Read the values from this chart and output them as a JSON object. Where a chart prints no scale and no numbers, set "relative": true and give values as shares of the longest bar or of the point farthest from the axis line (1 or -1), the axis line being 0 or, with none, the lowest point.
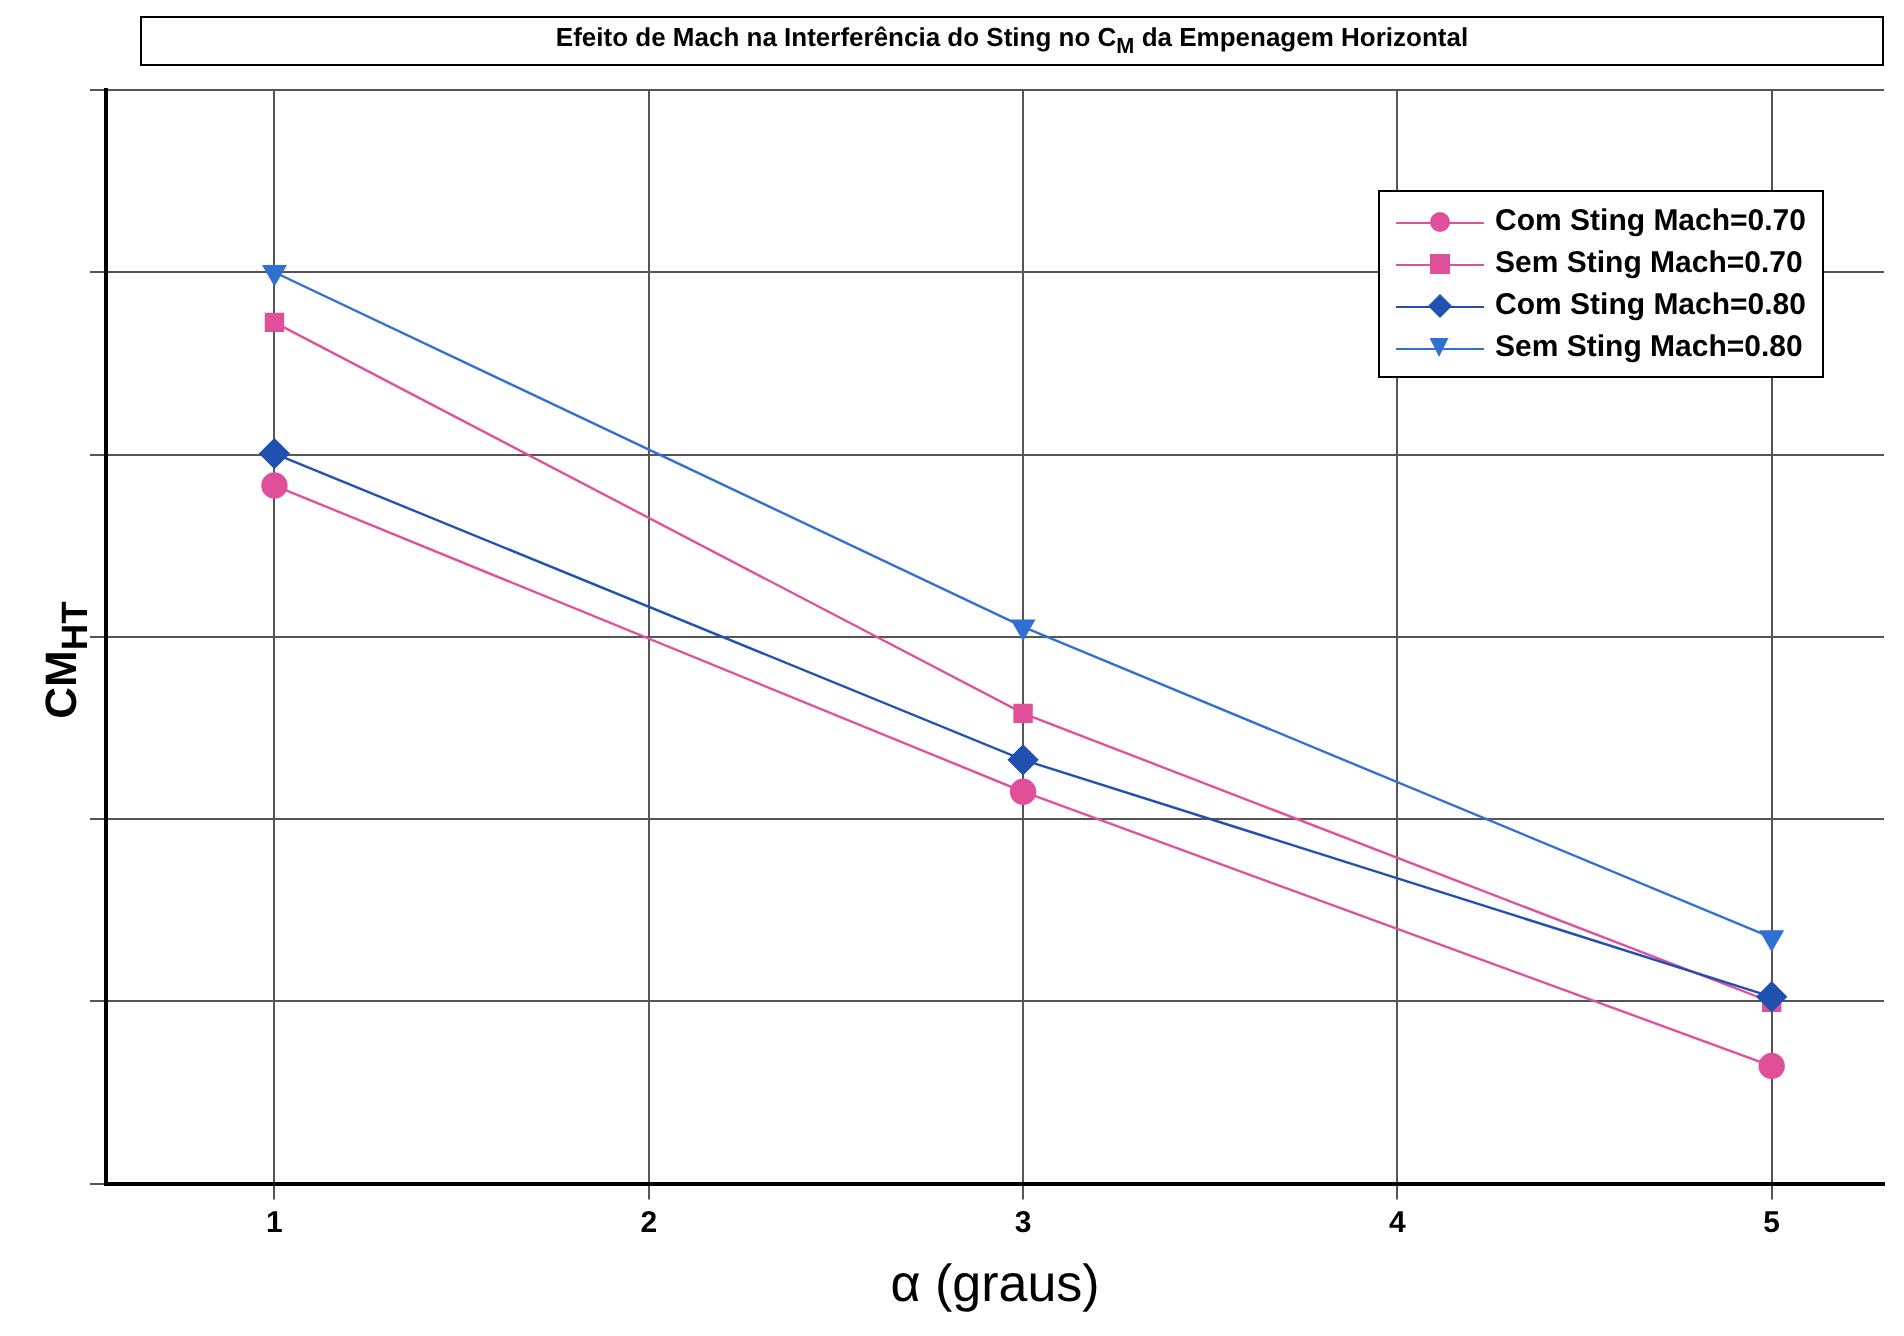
{
  "chart_data": {
    "type": "line",
    "title": "Efeito de Mach na Interferência do Sting no C$_{M}$ da Empenagem Horizontal",
    "xlabel": "α (graus)",
    "ylabel": "CM$_{HT}$",
    "relative": true,
    "x": [
      1,
      3,
      5
    ],
    "xlim": [
      0.55,
      5.3
    ],
    "xticks": [
      1,
      2,
      3,
      4,
      5
    ],
    "grid": true,
    "legend": "top right",
    "line_style": "solid",
    "series": [
      {
        "name": "Com Sting Mach=0.70",
        "color": "#e0509a",
        "marker": "circle",
        "values": [
          0.766,
          0.43,
          0.129
        ]
      },
      {
        "name": "Sem Sting Mach=0.70",
        "color": "#e0509a",
        "marker": "square",
        "values": [
          0.945,
          0.516,
          0.199
        ]
      },
      {
        "name": "Com Sting Mach=0.80",
        "color": "#2050b0",
        "marker": "diamond",
        "values": [
          0.801,
          0.465,
          0.205
        ]
      },
      {
        "name": "Sem Sting Mach=0.80",
        "color": "#3070d0",
        "marker": "triangle",
        "values": [
          1,
          0.611,
          0.27
        ]
      }
    ]
  }
}
